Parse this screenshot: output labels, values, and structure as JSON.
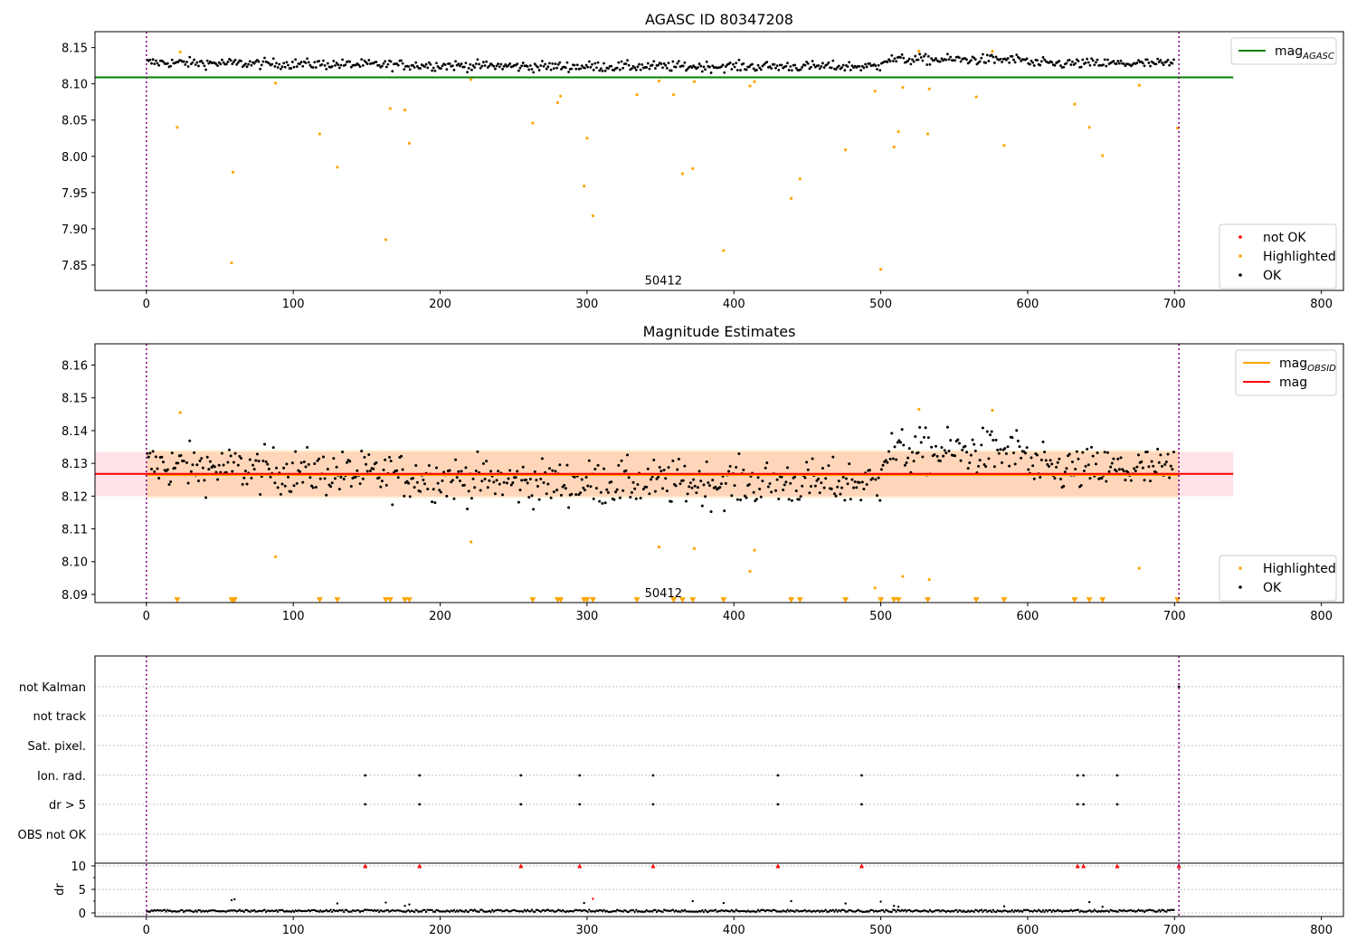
{
  "chart_data": [
    {
      "type": "scatter",
      "title": "AGASC ID 80347208",
      "xlim": [
        -35,
        815
      ],
      "ylim": [
        7.815,
        8.172
      ],
      "xticks": [
        0,
        100,
        200,
        300,
        400,
        500,
        600,
        700,
        800
      ],
      "yticks": [
        7.85,
        7.9,
        7.95,
        8.0,
        8.05,
        8.1,
        8.15
      ],
      "ytick_labels": [
        "7.85",
        "7.90",
        "7.95",
        "8.00",
        "8.05",
        "8.10",
        "8.15"
      ],
      "vlines": [
        0,
        703
      ],
      "hline": {
        "name": "mag_AGASC",
        "y": 8.109,
        "xrange": [
          -35,
          740
        ],
        "color": "#008000"
      },
      "annotation": {
        "text": "50412",
        "x": 352,
        "y": 7.823
      },
      "legend_top": {
        "position": "upper right",
        "entries": [
          {
            "label": "mag",
            "subscript": "AGASC",
            "color": "#008000",
            "kind": "line"
          }
        ]
      },
      "legend_bottom": {
        "position": "lower right",
        "entries": [
          {
            "label": "not OK",
            "color": "#ff0000",
            "kind": "dot"
          },
          {
            "label": "Highlighted",
            "color": "#ffa500",
            "kind": "dot"
          },
          {
            "label": "OK",
            "color": "#000000",
            "kind": "dot"
          }
        ]
      },
      "band": {
        "mean": 8.127,
        "amp": 0.005,
        "noise": 0.005,
        "n": 700
      },
      "highlighted": [
        [
          21,
          8.04
        ],
        [
          23,
          8.144
        ],
        [
          58,
          7.853
        ],
        [
          59,
          7.978
        ],
        [
          88,
          8.101
        ],
        [
          118,
          8.031
        ],
        [
          130,
          7.985
        ],
        [
          163,
          7.885
        ],
        [
          166,
          8.066
        ],
        [
          176,
          8.064
        ],
        [
          179,
          8.018
        ],
        [
          221,
          8.106
        ],
        [
          263,
          8.046
        ],
        [
          280,
          8.074
        ],
        [
          282,
          8.083
        ],
        [
          298,
          7.959
        ],
        [
          300,
          8.025
        ],
        [
          304,
          7.918
        ],
        [
          334,
          8.085
        ],
        [
          349,
          8.104
        ],
        [
          359,
          8.085
        ],
        [
          365,
          7.976
        ],
        [
          372,
          7.983
        ],
        [
          373,
          8.103
        ],
        [
          393,
          7.87
        ],
        [
          411,
          8.097
        ],
        [
          414,
          8.103
        ],
        [
          439,
          7.942
        ],
        [
          445,
          7.969
        ],
        [
          476,
          8.009
        ],
        [
          496,
          8.09
        ],
        [
          500,
          7.844
        ],
        [
          509,
          8.013
        ],
        [
          512,
          8.034
        ],
        [
          515,
          8.095
        ],
        [
          526,
          8.145
        ],
        [
          532,
          8.031
        ],
        [
          533,
          8.093
        ],
        [
          565,
          8.082
        ],
        [
          576,
          8.145
        ],
        [
          584,
          8.015
        ],
        [
          632,
          8.072
        ],
        [
          642,
          8.04
        ],
        [
          651,
          8.001
        ],
        [
          676,
          8.098
        ],
        [
          702,
          8.039
        ]
      ]
    },
    {
      "type": "scatter",
      "title": "Magnitude Estimates",
      "xlim": [
        -35,
        815
      ],
      "ylim": [
        8.0875,
        8.1665
      ],
      "xticks": [
        0,
        100,
        200,
        300,
        400,
        500,
        600,
        700,
        800
      ],
      "yticks": [
        8.09,
        8.1,
        8.11,
        8.12,
        8.13,
        8.14,
        8.15,
        8.16
      ],
      "ytick_labels": [
        "8.09",
        "8.10",
        "8.11",
        "8.12",
        "8.13",
        "8.14",
        "8.15",
        "8.16"
      ],
      "vlines": [
        0,
        703
      ],
      "mag_line": {
        "name": "mag",
        "y": 8.1268,
        "xrange": [
          -35,
          740
        ],
        "color": "#ff0000"
      },
      "mag_band": {
        "y0": 8.12,
        "y1": 8.1335,
        "xrange": [
          -35,
          740
        ],
        "color": "#ffc0cb"
      },
      "obsid_line": {
        "name": "mag_OBSID",
        "y": 8.1265,
        "xrange": [
          0,
          703
        ],
        "color": "#ffa500"
      },
      "obsid_band": {
        "y0": 8.1195,
        "y1": 8.134,
        "xrange": [
          0,
          703
        ],
        "color": "#ffa500"
      },
      "annotation": {
        "text": "50412",
        "x": 352,
        "y": 8.0895
      },
      "legend_top": {
        "position": "upper right",
        "entries": [
          {
            "label": "mag",
            "subscript": "OBSID",
            "color": "#ffa500",
            "kind": "line"
          },
          {
            "label": "mag",
            "color": "#ff0000",
            "kind": "line"
          }
        ]
      },
      "legend_bottom": {
        "position": "lower right",
        "entries": [
          {
            "label": "Highlighted",
            "color": "#ffa500",
            "kind": "dot"
          },
          {
            "label": "OK",
            "color": "#000000",
            "kind": "dot"
          }
        ]
      },
      "highlighted_in_range": [
        [
          23,
          8.1455
        ],
        [
          88,
          8.1015
        ],
        [
          221,
          8.106
        ],
        [
          349,
          8.1045
        ],
        [
          373,
          8.104
        ],
        [
          411,
          8.097
        ],
        [
          414,
          8.1035
        ],
        [
          496,
          8.092
        ],
        [
          515,
          8.0955
        ],
        [
          526,
          8.1465
        ],
        [
          533,
          8.0945
        ],
        [
          576,
          8.1462
        ],
        [
          676,
          8.098
        ]
      ],
      "below_range_markers_x": [
        21,
        58,
        59,
        60,
        118,
        130,
        163,
        166,
        176,
        179,
        263,
        280,
        282,
        298,
        300,
        304,
        334,
        359,
        365,
        372,
        393,
        439,
        445,
        476,
        500,
        509,
        512,
        532,
        565,
        584,
        632,
        642,
        651,
        702
      ]
    },
    {
      "type": "scatter",
      "title": "",
      "xlim": [
        -35,
        815
      ],
      "category_rows": [
        "not Kalman",
        "not track",
        "Sat. pixel.",
        "Ion. rad.",
        "dr > 5",
        "OBS not OK"
      ],
      "flag_events": {
        "Ion. rad.": [
          149,
          186,
          255,
          295,
          345,
          430,
          487,
          634,
          638,
          661
        ],
        "dr > 5": [
          149,
          186,
          255,
          295,
          345,
          430,
          487,
          634,
          638,
          661
        ],
        "not Kalman": [
          703
        ]
      },
      "vlines": [
        0,
        703
      ],
      "dr": {
        "ylabel": "dr",
        "ylim": [
          -0.5,
          10.5
        ],
        "yticks": [
          0,
          5,
          10
        ],
        "ytick_labels": [
          "0",
          "5",
          "10"
        ],
        "clip_value": 10,
        "clipped_x": [
          149,
          186,
          255,
          295,
          345,
          430,
          487,
          634,
          638,
          661,
          703
        ],
        "outliers": [
          [
            58,
            2.7
          ],
          [
            60,
            2.9
          ],
          [
            130,
            2.0
          ],
          [
            163,
            2.2
          ],
          [
            176,
            1.5
          ],
          [
            179,
            1.8
          ],
          [
            298,
            2.1
          ],
          [
            304,
            3.0
          ],
          [
            372,
            2.5
          ],
          [
            393,
            2.1
          ],
          [
            439,
            2.5
          ],
          [
            476,
            2.0
          ],
          [
            500,
            2.4
          ],
          [
            509,
            1.5
          ],
          [
            512,
            1.3
          ],
          [
            584,
            1.4
          ],
          [
            642,
            2.3
          ],
          [
            651,
            1.3
          ]
        ]
      },
      "xtick_labels": [
        "0",
        "100",
        "200",
        "300",
        "400",
        "500",
        "600",
        "700",
        "800"
      ]
    }
  ]
}
